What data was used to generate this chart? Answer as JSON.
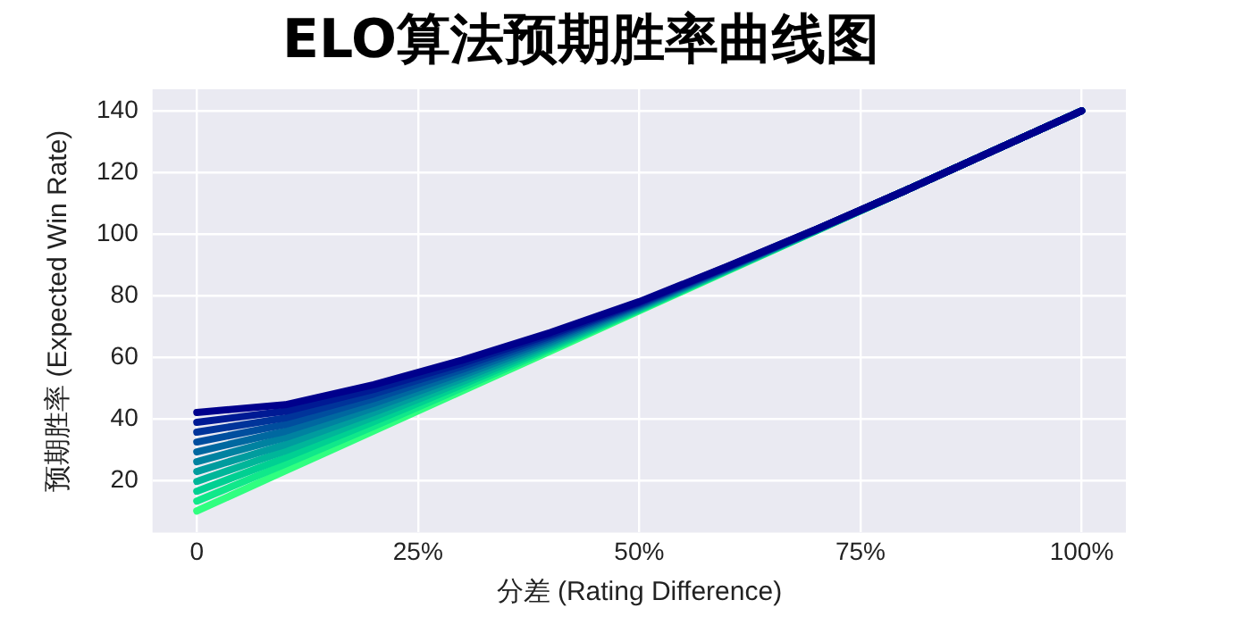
{
  "chart_data": {
    "type": "line",
    "title": "ELO算法预期胜率曲线图",
    "xlabel": "分差 (Rating Difference)",
    "ylabel": "预期胜率 (Expected Win Rate)",
    "x": [
      0,
      10,
      20,
      30,
      40,
      50,
      60,
      70,
      80,
      90,
      100
    ],
    "xlim": [
      -5,
      105
    ],
    "xticks": [
      {
        "value": 0,
        "label": "0"
      },
      {
        "value": 25,
        "label": "25%"
      },
      {
        "value": 50,
        "label": "50%"
      },
      {
        "value": 75,
        "label": "75%"
      },
      {
        "value": 100,
        "label": "100%"
      }
    ],
    "ylim": [
      3,
      147
    ],
    "yticks": [
      20,
      40,
      60,
      80,
      100,
      120,
      140
    ],
    "grid": true,
    "legend": false,
    "marker": "none",
    "line_style": "solid",
    "series": [
      {
        "color": "#00008c",
        "values": [
          42,
          44.5,
          51,
          59,
          68,
          78,
          89.5,
          101.5,
          114,
          127,
          140
        ]
      },
      {
        "color": "#001a94",
        "values": [
          38.8,
          42.4,
          49.5,
          58,
          67.4,
          77.7,
          89.4,
          101.5,
          114,
          127,
          140
        ]
      },
      {
        "color": "#00349a",
        "values": [
          35.6,
          40.2,
          48,
          57,
          66.8,
          77.4,
          89.2,
          101.4,
          114,
          127,
          140
        ]
      },
      {
        "color": "#004e9e",
        "values": [
          32.4,
          38.1,
          46.5,
          56,
          66.2,
          77.1,
          89.1,
          101.4,
          114,
          127,
          140
        ]
      },
      {
        "color": "#0068a0",
        "values": [
          29.2,
          35.9,
          45,
          55,
          65.6,
          76.8,
          88.9,
          101.3,
          114,
          127,
          140
        ]
      },
      {
        "color": "#0082a0",
        "values": [
          26,
          33.8,
          43.5,
          54,
          65,
          76.5,
          88.8,
          101.3,
          114,
          127,
          140
        ]
      },
      {
        "color": "#009c9e",
        "values": [
          22.8,
          31.6,
          42,
          53,
          64.4,
          76.2,
          88.6,
          101.2,
          114,
          127,
          140
        ]
      },
      {
        "color": "#00b699",
        "values": [
          19.6,
          29.5,
          40.5,
          52,
          63.8,
          75.9,
          88.5,
          101.2,
          114,
          127,
          140
        ]
      },
      {
        "color": "#00d092",
        "values": [
          16.4,
          27.3,
          39,
          51,
          63.2,
          75.6,
          88.3,
          101.1,
          114,
          127,
          140
        ]
      },
      {
        "color": "#10e88a",
        "values": [
          13.2,
          25.2,
          37.5,
          50,
          62.6,
          75.3,
          88.2,
          101.1,
          114,
          127,
          140
        ]
      },
      {
        "color": "#30ff80",
        "values": [
          10,
          23,
          36,
          49,
          62,
          75,
          88,
          101,
          114,
          127,
          140
        ]
      }
    ]
  }
}
